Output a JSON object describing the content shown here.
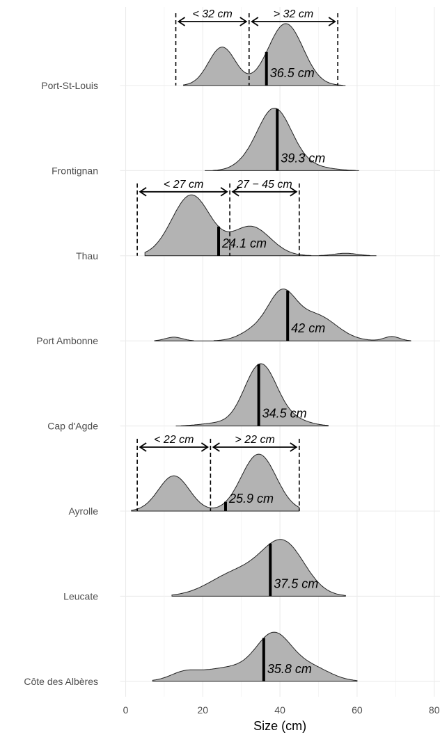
{
  "chart_data": {
    "type": "ridgeline",
    "xlabel": "Size (cm)",
    "xlim": [
      -3,
      80
    ],
    "x_ticks": [
      0,
      20,
      40,
      60,
      80
    ],
    "grid": true,
    "series": [
      {
        "name": "Port-St-Louis",
        "median": 36.5,
        "median_label": "36.5 cm",
        "components": [
          {
            "m": 25,
            "s": 3.5,
            "h": 0.62
          },
          {
            "m": 41.5,
            "s": 4.5,
            "h": 1.0
          }
        ],
        "range": [
          15,
          57
        ],
        "annotations": {
          "lines": [
            13,
            32,
            55
          ],
          "arrows": [
            {
              "from": 13,
              "to": 32,
              "label": "< 32 cm"
            },
            {
              "from": 32,
              "to": 55,
              "label": "> 32 cm"
            }
          ]
        }
      },
      {
        "name": "Frontignan",
        "median": 39.3,
        "median_label": "39.3 cm",
        "components": [
          {
            "m": 38.5,
            "s": 4.5,
            "h": 1.0
          },
          {
            "m": 48,
            "s": 5,
            "h": 0.06
          },
          {
            "m": 30,
            "s": 3,
            "h": 0.04
          }
        ],
        "range": [
          20.5,
          60.5
        ],
        "annotations": null
      },
      {
        "name": "Thau",
        "median": 24.1,
        "median_label": "24.1 cm",
        "components": [
          {
            "m": 17,
            "s": 5,
            "h": 0.98
          },
          {
            "m": 32.5,
            "s": 5,
            "h": 0.47
          },
          {
            "m": 57,
            "s": 3,
            "h": 0.04
          }
        ],
        "range": [
          5,
          65
        ],
        "annotations": {
          "lines": [
            3,
            27,
            45
          ],
          "arrows": [
            {
              "from": 3,
              "to": 27,
              "label": "< 27 cm"
            },
            {
              "from": 27,
              "to": 45,
              "label": "27 − 45 cm"
            }
          ]
        }
      },
      {
        "name": "Port Ambonne",
        "median": 42,
        "median_label": "42   cm",
        "components": [
          {
            "m": 40.5,
            "s": 3.5,
            "h": 0.66
          },
          {
            "m": 49,
            "s": 5.5,
            "h": 0.42
          },
          {
            "m": 34,
            "s": 4,
            "h": 0.18
          },
          {
            "m": 69,
            "s": 2,
            "h": 0.07
          },
          {
            "m": 12.5,
            "s": 2.2,
            "h": 0.06
          }
        ],
        "range": [
          7.5,
          74
        ],
        "annotations": null
      },
      {
        "name": "Cap d'Agde",
        "median": 34.5,
        "median_label": "34.5 cm",
        "components": [
          {
            "m": 35,
            "s": 4.2,
            "h": 1.0
          },
          {
            "m": 44,
            "s": 4,
            "h": 0.08
          },
          {
            "m": 23,
            "s": 4,
            "h": 0.04
          }
        ],
        "range": [
          13,
          52.5
        ],
        "annotations": null
      },
      {
        "name": "Ayrolle",
        "median": 25.9,
        "median_label": "25.9 cm",
        "components": [
          {
            "m": 12.5,
            "s": 4,
            "h": 0.57
          },
          {
            "m": 34.5,
            "s": 4.5,
            "h": 0.92
          }
        ],
        "range": [
          1.5,
          45
        ],
        "annotations": {
          "lines": [
            3,
            22,
            45
          ],
          "arrows": [
            {
              "from": 3,
              "to": 22,
              "label": "< 22 cm"
            },
            {
              "from": 22,
              "to": 45,
              "label": "> 22 cm"
            }
          ]
        }
      },
      {
        "name": "Leucate",
        "median": 37.5,
        "median_label": "37.5 cm",
        "components": [
          {
            "m": 41,
            "s": 5.5,
            "h": 0.82
          },
          {
            "m": 29,
            "s": 7,
            "h": 0.38
          }
        ],
        "range": [
          12,
          57
        ],
        "annotations": null
      },
      {
        "name": "Côte des Albères",
        "median": 35.8,
        "median_label": "35.8 cm",
        "components": [
          {
            "m": 38.5,
            "s": 4.5,
            "h": 0.68
          },
          {
            "m": 27,
            "s": 8,
            "h": 0.22
          },
          {
            "m": 15,
            "s": 3.5,
            "h": 0.1
          },
          {
            "m": 48,
            "s": 5,
            "h": 0.22
          }
        ],
        "range": [
          7,
          60
        ],
        "annotations": null
      }
    ]
  }
}
